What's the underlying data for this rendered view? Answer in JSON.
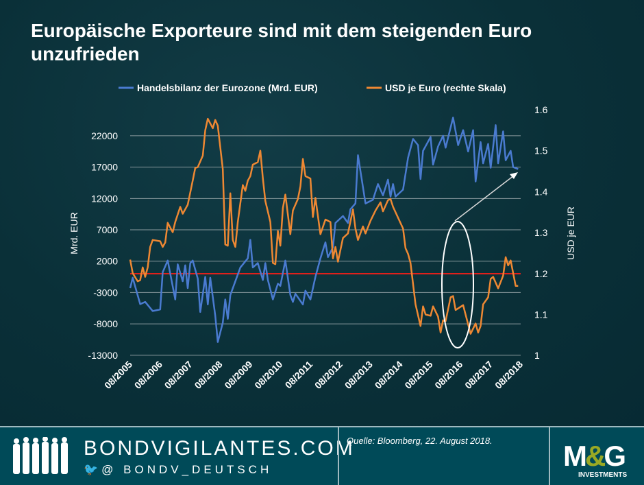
{
  "title": "Europäische Exporteure sind mit dem steigenden Euro unzufrieden",
  "chart_data": {
    "type": "line",
    "title": "Europäische Exporteure sind mit dem steigenden Euro unzufrieden",
    "ylabel_left": "Mrd. EUR",
    "ylabel_right": "USD je EUR",
    "ylim_left": [
      -13000,
      24900
    ],
    "ylim_right": [
      1.0,
      1.6
    ],
    "yticks_left": [
      "22000",
      "17000",
      "12000",
      "7000",
      "2000",
      "-3000",
      "-8000",
      "-13000"
    ],
    "yticks_right": [
      "1.6",
      "1.5",
      "1.4",
      "1.3",
      "1.2",
      "1.1",
      "1"
    ],
    "xticks": [
      "08/2005",
      "08/2006",
      "08/2007",
      "08/2008",
      "08/2009",
      "08/2010",
      "08/2011",
      "08/2012",
      "08/2013",
      "08/2014",
      "08/2015",
      "08/2016",
      "08/2017",
      "08/2018"
    ],
    "grid": true,
    "legend_position": "top",
    "reference_line": {
      "axis": "left",
      "value": 0,
      "color": "#e0201b"
    },
    "annotation": "ellipse around 2017–2018 EUR rise with arrow to trade balance",
    "series": [
      {
        "name": "Handelsbilanz der Eurozone (Mrd. EUR)",
        "axis": "left",
        "color": "#4a7bd0",
        "x": [
          "2005-08",
          "2005-09",
          "2005-12",
          "2006-02",
          "2006-05",
          "2006-08",
          "2006-09",
          "2006-11",
          "2007-02",
          "2007-03",
          "2007-05",
          "2007-06",
          "2007-07",
          "2007-08",
          "2007-09",
          "2007-11",
          "2007-12",
          "2008-02",
          "2008-03",
          "2008-04",
          "2008-06",
          "2008-07",
          "2008-09",
          "2008-10",
          "2008-11",
          "2008-12",
          "2009-04",
          "2009-07",
          "2009-08",
          "2009-09",
          "2009-11",
          "2010-01",
          "2010-02",
          "2010-03",
          "2010-05",
          "2010-07",
          "2010-08",
          "2010-10",
          "2010-12",
          "2011-01",
          "2011-02",
          "2011-05",
          "2011-06",
          "2011-08",
          "2011-10",
          "2011-12",
          "2012-02",
          "2012-03",
          "2012-05",
          "2012-06",
          "2012-09",
          "2012-11",
          "2012-12",
          "2013-02",
          "2013-03",
          "2013-05",
          "2013-06",
          "2013-09",
          "2013-11",
          "2014-01",
          "2014-03",
          "2014-04",
          "2014-05",
          "2014-06",
          "2014-09",
          "2014-11",
          "2015-01",
          "2015-03",
          "2015-04",
          "2015-05",
          "2015-08",
          "2015-09",
          "2015-11",
          "2016-01",
          "2016-02",
          "2016-05",
          "2016-07",
          "2016-09",
          "2016-11",
          "2017-01",
          "2017-02",
          "2017-04",
          "2017-05",
          "2017-07",
          "2017-08",
          "2017-10",
          "2017-11",
          "2018-01",
          "2018-02",
          "2018-04",
          "2018-05",
          "2018-07"
        ],
        "values": [
          -2300,
          -650,
          -4850,
          -4500,
          -5950,
          -5700,
          250,
          2100,
          -4100,
          1500,
          -1200,
          1350,
          -2300,
          1700,
          2100,
          -800,
          -6100,
          -500,
          -4900,
          -650,
          -6700,
          -10900,
          -7800,
          -4100,
          -7200,
          -3400,
          1000,
          2450,
          5400,
          1000,
          1700,
          -1000,
          1700,
          -1000,
          -4100,
          -1600,
          -1950,
          2100,
          -3400,
          -4500,
          -3200,
          -4900,
          -2700,
          -4100,
          -500,
          2450,
          5000,
          2650,
          4200,
          8100,
          9200,
          8100,
          10300,
          11200,
          18900,
          13800,
          11200,
          11800,
          14300,
          12500,
          15000,
          12300,
          14300,
          12300,
          13400,
          18500,
          21500,
          20500,
          15100,
          19600,
          21800,
          17400,
          20300,
          22000,
          20100,
          24900,
          20500,
          22900,
          19500,
          22900,
          14700,
          21000,
          17600,
          20700,
          16900,
          23700,
          17600,
          22700,
          18100,
          19600,
          17000,
          16700
        ]
      },
      {
        "name": "USD je Euro (rechte Skala)",
        "axis": "right",
        "color": "#ee8833",
        "x": [
          "2005-08",
          "2005-09",
          "2005-11",
          "2005-12",
          "2006-01",
          "2006-02",
          "2006-03",
          "2006-04",
          "2006-05",
          "2006-08",
          "2006-09",
          "2006-10",
          "2006-11",
          "2007-01",
          "2007-02",
          "2007-04",
          "2007-05",
          "2007-07",
          "2007-09",
          "2007-10",
          "2007-11",
          "2008-01",
          "2008-02",
          "2008-03",
          "2008-05",
          "2008-06",
          "2008-07",
          "2008-09",
          "2008-10",
          "2008-11",
          "2008-12",
          "2009-01",
          "2009-02",
          "2009-03",
          "2009-05",
          "2009-06",
          "2009-07",
          "2009-08",
          "2009-09",
          "2009-11",
          "2009-12",
          "2010-01",
          "2010-02",
          "2010-04",
          "2010-05",
          "2010-06",
          "2010-07",
          "2010-08",
          "2010-09",
          "2010-10",
          "2010-12",
          "2011-01",
          "2011-03",
          "2011-04",
          "2011-05",
          "2011-06",
          "2011-08",
          "2011-09",
          "2011-10",
          "2011-12",
          "2012-02",
          "2012-04",
          "2012-05",
          "2012-06",
          "2012-07",
          "2012-09",
          "2012-11",
          "2013-01",
          "2013-02",
          "2013-03",
          "2013-05",
          "2013-06",
          "2013-08",
          "2013-10",
          "2013-12",
          "2014-01",
          "2014-03",
          "2014-04",
          "2014-05",
          "2014-09",
          "2014-10",
          "2014-11",
          "2014-12",
          "2015-02",
          "2015-04",
          "2015-05",
          "2015-06",
          "2015-08",
          "2015-09",
          "2015-11",
          "2015-12",
          "2016-01",
          "2016-02",
          "2016-04",
          "2016-05",
          "2016-06",
          "2016-09",
          "2016-12",
          "2017-02",
          "2017-03",
          "2017-04",
          "2017-05",
          "2017-07",
          "2017-08",
          "2017-09",
          "2017-11",
          "2018-01",
          "2018-02",
          "2018-03",
          "2018-04",
          "2018-06",
          "2018-07"
        ],
        "values": [
          1.234,
          1.201,
          1.181,
          1.184,
          1.215,
          1.192,
          1.215,
          1.265,
          1.282,
          1.279,
          1.265,
          1.276,
          1.324,
          1.301,
          1.326,
          1.363,
          1.346,
          1.368,
          1.427,
          1.458,
          1.46,
          1.488,
          1.55,
          1.578,
          1.555,
          1.575,
          1.561,
          1.455,
          1.271,
          1.268,
          1.396,
          1.282,
          1.265,
          1.326,
          1.416,
          1.402,
          1.427,
          1.438,
          1.466,
          1.472,
          1.5,
          1.432,
          1.377,
          1.326,
          1.226,
          1.223,
          1.304,
          1.268,
          1.36,
          1.393,
          1.296,
          1.354,
          1.382,
          1.413,
          1.48,
          1.438,
          1.432,
          1.338,
          1.385,
          1.296,
          1.332,
          1.326,
          1.237,
          1.265,
          1.229,
          1.287,
          1.298,
          1.357,
          1.31,
          1.282,
          1.315,
          1.298,
          1.329,
          1.354,
          1.374,
          1.352,
          1.379,
          1.382,
          1.363,
          1.31,
          1.262,
          1.248,
          1.226,
          1.125,
          1.072,
          1.12,
          1.1,
          1.097,
          1.12,
          1.095,
          1.056,
          1.086,
          1.084,
          1.142,
          1.145,
          1.111,
          1.123,
          1.053,
          1.078,
          1.056,
          1.072,
          1.125,
          1.142,
          1.187,
          1.192,
          1.164,
          1.195,
          1.24,
          1.22,
          1.232,
          1.17,
          1.17
        ]
      }
    ]
  },
  "footer": {
    "site": "BONDVIGILANTES.COM",
    "twitter": "@ BONDV_DEUTSCH",
    "source": "Quelle:  Bloomberg, 22. August 2018.",
    "logo_text": "M&G",
    "logo_sub": "INVESTMENTS"
  }
}
